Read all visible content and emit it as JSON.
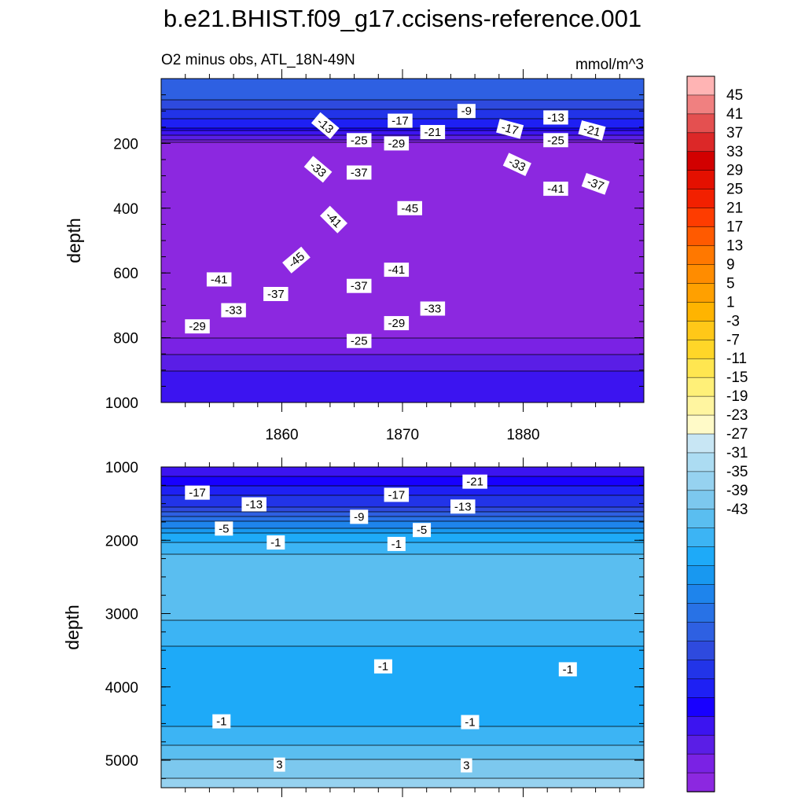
{
  "title": "b.e21.BHIST.f09_g17.ccisens-reference.001",
  "subtitle_left": "O2 minus obs, ATL_18N-49N",
  "subtitle_right": "mmol/m^3",
  "colorbar": {
    "labels": [
      "45",
      "41",
      "37",
      "33",
      "29",
      "25",
      "21",
      "17",
      "13",
      "9",
      "5",
      "1",
      "-3",
      "-7",
      "-11",
      "-15",
      "-19",
      "-23",
      "-27",
      "-31",
      "-35",
      "-39",
      "-43"
    ],
    "colors": [
      "#FFB4B4",
      "#F08080",
      "#E45050",
      "#DC2828",
      "#D20000",
      "#E41000",
      "#F22000",
      "#FE3C00",
      "#FF5A00",
      "#FF7800",
      "#FF8C00",
      "#FFA000",
      "#FFB400",
      "#FFC818",
      "#FFD628",
      "#FFE650",
      "#FFF078",
      "#FFF5A0",
      "#FFFAC8",
      "#C8E6F4",
      "#ACDCF2",
      "#96D2F0",
      "#7CC8EE",
      "#5ABEF0",
      "#3CB4F4",
      "#1EAAF8",
      "#1898F0",
      "#1E84EC",
      "#2872E6",
      "#2E60E2",
      "#2E4ADE",
      "#2234E8",
      "#1E20F4",
      "#1800FF",
      "#3C14F0",
      "#5A1EE6",
      "#7A22E4",
      "#8C28E0"
    ],
    "description": "Colors listed from top of the bar (highest) to bottom (lowest)"
  },
  "chart_data": [
    {
      "type": "contour",
      "panel": "upper",
      "variable": "O2 minus obs",
      "units": "mmol/m^3",
      "region": "ATL_18N-49N",
      "xlabel": "",
      "ylabel": "depth",
      "x_ticks": [
        1860,
        1870,
        1880
      ],
      "x_tick_labels": [
        "1860",
        "1870",
        "1880"
      ],
      "xlim": [
        1850,
        1890
      ],
      "y_ticks": [
        200,
        400,
        600,
        800,
        1000
      ],
      "y_tick_labels": [
        "200",
        "400",
        "600",
        "800",
        "1000"
      ],
      "ylim": [
        1000,
        0
      ],
      "y_reversed": true,
      "depth_profile": [
        {
          "depth": 50,
          "value": -10
        },
        {
          "depth": 150,
          "value": -17
        },
        {
          "depth": 200,
          "value": -25
        },
        {
          "depth": 260,
          "value": -31
        },
        {
          "depth": 320,
          "value": -39
        },
        {
          "depth": 420,
          "value": -45
        },
        {
          "depth": 520,
          "value": -45
        },
        {
          "depth": 600,
          "value": -41
        },
        {
          "depth": 660,
          "value": -37
        },
        {
          "depth": 720,
          "value": -31
        },
        {
          "depth": 800,
          "value": -25
        },
        {
          "depth": 900,
          "value": -21
        },
        {
          "depth": 1000,
          "value": -19
        }
      ],
      "contour_labels": [
        {
          "text": "-9",
          "x": 1875.3,
          "y": 100,
          "angle": 0
        },
        {
          "text": "-13",
          "x": 1863.6,
          "y": 145,
          "angle": 40
        },
        {
          "text": "-17",
          "x": 1869.8,
          "y": 130,
          "angle": 0
        },
        {
          "text": "-21",
          "x": 1872.5,
          "y": 165,
          "angle": 0
        },
        {
          "text": "-17",
          "x": 1878.9,
          "y": 155,
          "angle": 15
        },
        {
          "text": "-13",
          "x": 1882.7,
          "y": 120,
          "angle": 0
        },
        {
          "text": "-21",
          "x": 1885.7,
          "y": 160,
          "angle": 15
        },
        {
          "text": "-25",
          "x": 1866.4,
          "y": 190,
          "angle": 0
        },
        {
          "text": "-29",
          "x": 1869.5,
          "y": 200,
          "angle": 0
        },
        {
          "text": "-25",
          "x": 1882.7,
          "y": 190,
          "angle": 0
        },
        {
          "text": "-33",
          "x": 1863.0,
          "y": 280,
          "angle": 40
        },
        {
          "text": "-37",
          "x": 1866.4,
          "y": 290,
          "angle": 0
        },
        {
          "text": "-33",
          "x": 1879.5,
          "y": 265,
          "angle": 25
        },
        {
          "text": "-41",
          "x": 1882.7,
          "y": 340,
          "angle": 0
        },
        {
          "text": "-37",
          "x": 1886.0,
          "y": 325,
          "angle": 20
        },
        {
          "text": "-41",
          "x": 1864.3,
          "y": 435,
          "angle": 45
        },
        {
          "text": "-45",
          "x": 1870.6,
          "y": 400,
          "angle": 0
        },
        {
          "text": "-45",
          "x": 1861.2,
          "y": 560,
          "angle": -40
        },
        {
          "text": "-41",
          "x": 1854.8,
          "y": 620,
          "angle": 0
        },
        {
          "text": "-41",
          "x": 1869.5,
          "y": 590,
          "angle": 0
        },
        {
          "text": "-37",
          "x": 1859.5,
          "y": 665,
          "angle": 0
        },
        {
          "text": "-37",
          "x": 1866.4,
          "y": 640,
          "angle": 0
        },
        {
          "text": "-33",
          "x": 1856.0,
          "y": 715,
          "angle": 0
        },
        {
          "text": "-33",
          "x": 1872.5,
          "y": 710,
          "angle": 0
        },
        {
          "text": "-29",
          "x": 1853.0,
          "y": 765,
          "angle": 0
        },
        {
          "text": "-29",
          "x": 1869.5,
          "y": 755,
          "angle": 0
        },
        {
          "text": "-25",
          "x": 1866.4,
          "y": 810,
          "angle": 0
        }
      ]
    },
    {
      "type": "contour",
      "panel": "lower",
      "variable": "O2 minus obs",
      "units": "mmol/m^3",
      "xlabel": "",
      "ylabel": "depth",
      "xlim": [
        1850,
        1890
      ],
      "y_ticks": [
        1000,
        2000,
        3000,
        4000,
        5000
      ],
      "y_tick_labels": [
        "1000",
        "2000",
        "3000",
        "4000",
        "5000"
      ],
      "ylim": [
        5375,
        1000
      ],
      "y_reversed": true,
      "depth_profile": [
        {
          "depth": 1000,
          "value": -21
        },
        {
          "depth": 1250,
          "value": -17
        },
        {
          "depth": 1550,
          "value": -13
        },
        {
          "depth": 1750,
          "value": -7
        },
        {
          "depth": 1950,
          "value": -2
        },
        {
          "depth": 2100,
          "value": 0
        },
        {
          "depth": 2300,
          "value": 2
        },
        {
          "depth": 3000,
          "value": 2
        },
        {
          "depth": 3200,
          "value": 0
        },
        {
          "depth": 3700,
          "value": -2
        },
        {
          "depth": 4400,
          "value": -2
        },
        {
          "depth": 4700,
          "value": 0
        },
        {
          "depth": 5000,
          "value": 3
        },
        {
          "depth": 5375,
          "value": 6
        }
      ],
      "contour_labels": [
        {
          "text": "-21",
          "x": 1876.0,
          "y": 1200,
          "angle": 0
        },
        {
          "text": "-17",
          "x": 1853.0,
          "y": 1350,
          "angle": 0
        },
        {
          "text": "-17",
          "x": 1869.5,
          "y": 1380,
          "angle": 0
        },
        {
          "text": "-13",
          "x": 1857.7,
          "y": 1510,
          "angle": 0
        },
        {
          "text": "-13",
          "x": 1875.0,
          "y": 1540,
          "angle": 0
        },
        {
          "text": "-9",
          "x": 1866.4,
          "y": 1680,
          "angle": 0
        },
        {
          "text": "-5",
          "x": 1855.2,
          "y": 1840,
          "angle": 0
        },
        {
          "text": "-5",
          "x": 1871.6,
          "y": 1860,
          "angle": 0
        },
        {
          "text": "-1",
          "x": 1859.5,
          "y": 2030,
          "angle": 0
        },
        {
          "text": "-1",
          "x": 1869.5,
          "y": 2050,
          "angle": 0
        },
        {
          "text": "-1",
          "x": 1868.4,
          "y": 3720,
          "angle": 0
        },
        {
          "text": "-1",
          "x": 1883.7,
          "y": 3760,
          "angle": 0
        },
        {
          "text": "-1",
          "x": 1855.0,
          "y": 4470,
          "angle": 0
        },
        {
          "text": "-1",
          "x": 1875.6,
          "y": 4480,
          "angle": 0
        },
        {
          "text": "3",
          "x": 1859.8,
          "y": 5060,
          "angle": 0
        },
        {
          "text": "3",
          "x": 1875.3,
          "y": 5070,
          "angle": 0
        }
      ]
    }
  ]
}
